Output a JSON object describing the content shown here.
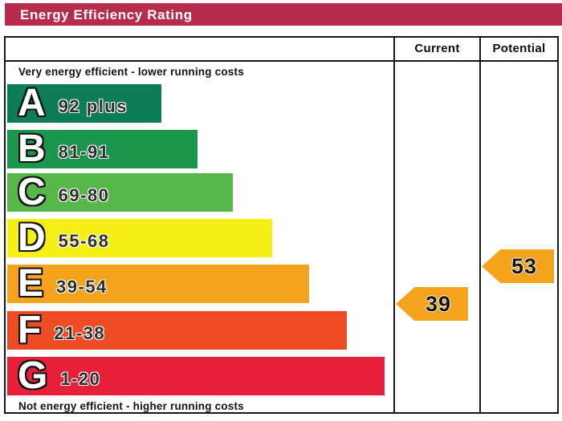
{
  "title": "Energy Efficiency Rating",
  "title_bar_color": "#b72c4d",
  "columns": {
    "current": "Current",
    "potential": "Potential"
  },
  "top_note": "Very energy efficient - lower running costs",
  "bottom_note": "Not energy efficient - higher running costs",
  "bands": [
    {
      "letter": "A",
      "range": "92 plus",
      "color": "#0c7d55"
    },
    {
      "letter": "B",
      "range": "81-91",
      "color": "#1b964d"
    },
    {
      "letter": "C",
      "range": "69-80",
      "color": "#56b848"
    },
    {
      "letter": "D",
      "range": "55-68",
      "color": "#f5ef16"
    },
    {
      "letter": "E",
      "range": "39-54",
      "color": "#f5a21c"
    },
    {
      "letter": "F",
      "range": "21-38",
      "color": "#ee4c24"
    },
    {
      "letter": "G",
      "range": "1-20",
      "color": "#e71f38"
    }
  ],
  "current": {
    "value": "39",
    "color": "#f5a21c"
  },
  "potential": {
    "value": "53",
    "color": "#f5a21c"
  },
  "chart_data": {
    "type": "bar",
    "title": "Energy Efficiency Rating",
    "categories": [
      "A",
      "B",
      "C",
      "D",
      "E",
      "F",
      "G"
    ],
    "band_ranges": [
      "92 plus",
      "81-91",
      "69-80",
      "55-68",
      "39-54",
      "21-38",
      "1-20"
    ],
    "band_colors": [
      "#0c7d55",
      "#1b964d",
      "#56b848",
      "#f5ef16",
      "#f5a21c",
      "#ee4c24",
      "#e71f38"
    ],
    "series": [
      {
        "name": "Current",
        "value": 39,
        "band": "E"
      },
      {
        "name": "Potential",
        "value": 53,
        "band": "E"
      }
    ],
    "scale_min": 1,
    "scale_max": 100,
    "top_label": "Very energy efficient - lower running costs",
    "bottom_label": "Not energy efficient - higher running costs",
    "legend_position": "right-columns",
    "grid": false
  }
}
